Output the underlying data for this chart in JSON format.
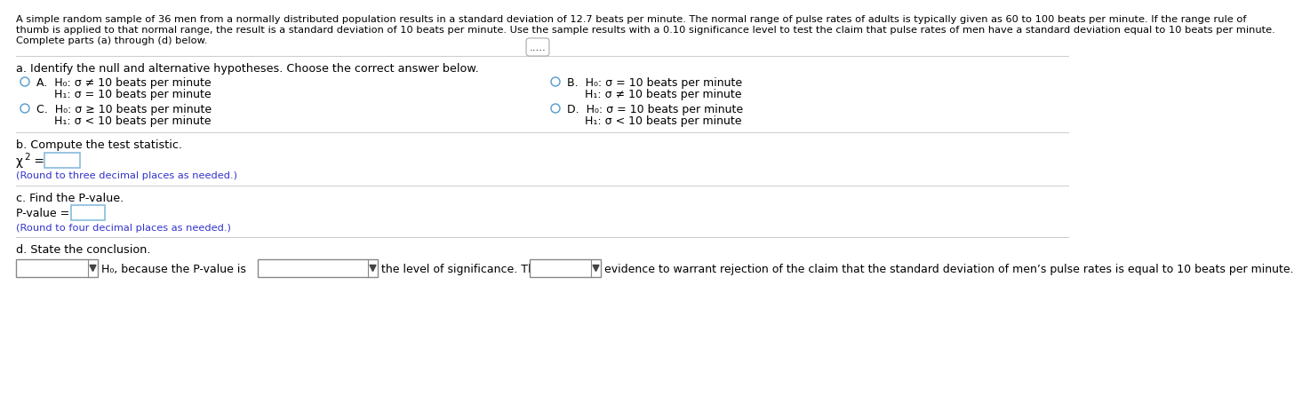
{
  "bg_color": "#ffffff",
  "text_color": "#000000",
  "blue_color": "#0000ff",
  "link_color": "#3333cc",
  "intro_line1": "A simple random sample of 36 men from a normally distributed population results in a standard deviation of 12.7 beats per minute. The normal range of pulse rates of adults is typically given as 60 to 100 beats per minute. If the range rule of",
  "intro_line2": "thumb is applied to that normal range, the result is a standard deviation of 10 beats per minute. Use the sample results with a 0.10 significance level to test the claim that pulse rates of men have a standard deviation equal to 10 beats per minute.",
  "intro_line3": "Complete parts (a) through (d) below.",
  "dots": ".....",
  "part_a_label": "a. Identify the null and alternative hypotheses. Choose the correct answer below.",
  "optA_H0": "H₀: σ ≠ 10 beats per minute",
  "optA_H1": "H₁: σ = 10 beats per minute",
  "optA_letter": "A.",
  "optB_H0": "H₀: σ = 10 beats per minute",
  "optB_H1": "H₁: σ ≠ 10 beats per minute",
  "optB_letter": "B.",
  "optC_H0": "H₀: σ ≥ 10 beats per minute",
  "optC_H1": "H₁: σ < 10 beats per minute",
  "optC_letter": "C.",
  "optD_H0": "H₀: σ = 10 beats per minute",
  "optD_H1": "H₁: σ < 10 beats per minute",
  "optD_letter": "D.",
  "part_b_label": "b. Compute the test statistic.",
  "chi2_pre": "χ",
  "chi2_sup": "2",
  "chi2_eq": " =",
  "round3": "(Round to three decimal places as needed.)",
  "part_c_label": "c. Find the P-value.",
  "pvalue_label": "P-value =",
  "round4": "(Round to four decimal places as needed.)",
  "part_d_label": "d. State the conclusion.",
  "h0_because": "H₀, because the P-value is",
  "the_level": "the level of significance. There is",
  "evidence_text": "evidence to warrant rejection of the claim that the standard deviation of men’s pulse rates is equal to 10 beats per minute.",
  "fontsize_intro": 8.2,
  "fontsize_opts": 9.0,
  "fontsize_label": 9.2,
  "fontsize_small": 8.2,
  "fontsize_chi": 10.0
}
